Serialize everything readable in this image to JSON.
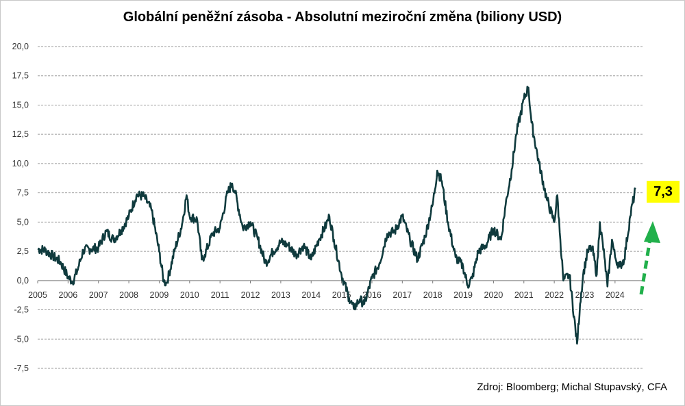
{
  "title": "Globální peněžní zásoba - Absolutní meziroční změna (biliony USD)",
  "source": "Zdroj: Bloomberg; Michal Stupavský, CFA",
  "callout": {
    "value": "7,3",
    "background": "#ffff00"
  },
  "colors": {
    "line": "#0f3a3d",
    "grid": "#9a9a9a",
    "arrow": "#21b04b"
  },
  "chart_data": {
    "type": "line",
    "title": "Globální peněžní zásoba - Absolutní meziroční změna (biliony USD)",
    "ylim": [
      -7.5,
      20
    ],
    "grid": "horizontal dashed",
    "yticks": [
      "20,0",
      "17,5",
      "15,0",
      "12,5",
      "10,0",
      "7,5",
      "5,0",
      "2,5",
      "0,0",
      "-2,5",
      "-5,0",
      "-7,5"
    ],
    "xticks": [
      "2005",
      "2006",
      "2007",
      "2008",
      "2009",
      "2010",
      "2011",
      "2012",
      "2013",
      "2014",
      "2015",
      "2016",
      "2017",
      "2018",
      "2019",
      "2020",
      "2021",
      "2022",
      "2023",
      "2024"
    ],
    "series": [
      {
        "points": [
          [
            2005.0,
            2.7
          ],
          [
            2005.25,
            2.6
          ],
          [
            2005.5,
            2.1
          ],
          [
            2005.75,
            1.6
          ],
          [
            2006.0,
            0.3
          ],
          [
            2006.15,
            -0.1
          ],
          [
            2006.3,
            0.8
          ],
          [
            2006.5,
            2.6
          ],
          [
            2006.75,
            2.7
          ],
          [
            2007.0,
            2.8
          ],
          [
            2007.25,
            4.2
          ],
          [
            2007.5,
            3.5
          ],
          [
            2007.75,
            4.3
          ],
          [
            2008.0,
            5.5
          ],
          [
            2008.25,
            7.3
          ],
          [
            2008.5,
            7.2
          ],
          [
            2008.75,
            6.0
          ],
          [
            2009.0,
            2.5
          ],
          [
            2009.15,
            -0.1
          ],
          [
            2009.25,
            -0.2
          ],
          [
            2009.5,
            2.5
          ],
          [
            2009.75,
            4.8
          ],
          [
            2009.9,
            7.3
          ],
          [
            2010.0,
            5.5
          ],
          [
            2010.25,
            5.2
          ],
          [
            2010.4,
            1.8
          ],
          [
            2010.5,
            2.2
          ],
          [
            2010.75,
            4.0
          ],
          [
            2011.0,
            4.5
          ],
          [
            2011.25,
            7.5
          ],
          [
            2011.4,
            8.3
          ],
          [
            2011.5,
            7.5
          ],
          [
            2011.75,
            4.5
          ],
          [
            2012.0,
            5.0
          ],
          [
            2012.25,
            3.5
          ],
          [
            2012.5,
            1.5
          ],
          [
            2012.75,
            2.5
          ],
          [
            2013.0,
            3.3
          ],
          [
            2013.25,
            3.0
          ],
          [
            2013.5,
            2.2
          ],
          [
            2013.75,
            3.0
          ],
          [
            2014.0,
            1.8
          ],
          [
            2014.25,
            3.5
          ],
          [
            2014.5,
            4.8
          ],
          [
            2014.6,
            5.5
          ],
          [
            2014.75,
            3.5
          ],
          [
            2015.0,
            0.5
          ],
          [
            2015.25,
            -1.5
          ],
          [
            2015.4,
            -2.4
          ],
          [
            2015.6,
            -1.6
          ],
          [
            2015.75,
            -2.0
          ],
          [
            2016.0,
            0.2
          ],
          [
            2016.25,
            1.5
          ],
          [
            2016.5,
            4.0
          ],
          [
            2016.75,
            4.2
          ],
          [
            2017.0,
            5.5
          ],
          [
            2017.25,
            3.5
          ],
          [
            2017.5,
            1.8
          ],
          [
            2017.75,
            3.8
          ],
          [
            2018.0,
            6.5
          ],
          [
            2018.15,
            9.4
          ],
          [
            2018.3,
            8.5
          ],
          [
            2018.5,
            5.0
          ],
          [
            2018.75,
            2.0
          ],
          [
            2019.0,
            1.2
          ],
          [
            2019.15,
            -0.4
          ],
          [
            2019.3,
            0.2
          ],
          [
            2019.5,
            2.5
          ],
          [
            2019.75,
            3.0
          ],
          [
            2020.0,
            4.4
          ],
          [
            2020.25,
            3.5
          ],
          [
            2020.4,
            6.5
          ],
          [
            2020.6,
            9.5
          ],
          [
            2020.75,
            12.5
          ],
          [
            2021.0,
            15.5
          ],
          [
            2021.15,
            16.5
          ],
          [
            2021.25,
            13.5
          ],
          [
            2021.5,
            10.0
          ],
          [
            2021.75,
            7.0
          ],
          [
            2022.0,
            5.0
          ],
          [
            2022.1,
            7.3
          ],
          [
            2022.2,
            3.5
          ],
          [
            2022.3,
            0.0
          ],
          [
            2022.5,
            0.5
          ],
          [
            2022.75,
            -5.4
          ],
          [
            2022.85,
            -2.0
          ],
          [
            2022.95,
            0.5
          ],
          [
            2023.1,
            2.5
          ],
          [
            2023.25,
            2.8
          ],
          [
            2023.4,
            0.5
          ],
          [
            2023.5,
            5.0
          ],
          [
            2023.65,
            2.0
          ],
          [
            2023.75,
            -0.5
          ],
          [
            2023.9,
            3.5
          ],
          [
            2024.0,
            2.0
          ],
          [
            2024.15,
            1.2
          ],
          [
            2024.3,
            1.8
          ],
          [
            2024.5,
            5.5
          ],
          [
            2024.67,
            7.8
          ]
        ]
      }
    ]
  }
}
